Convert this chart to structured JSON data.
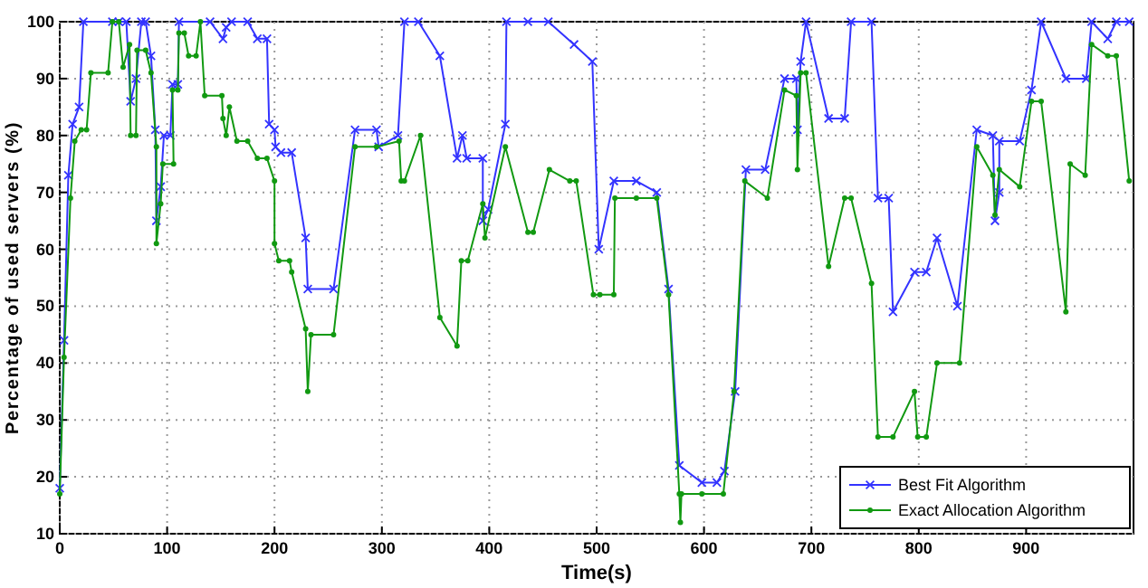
{
  "chart_data": {
    "type": "line",
    "xlabel": "Time(s)",
    "ylabel": "Percentage of used servers (%)",
    "xlim": [
      0,
      1000
    ],
    "xticks": [
      0,
      100,
      200,
      300,
      400,
      500,
      600,
      700,
      800,
      900
    ],
    "ylim": [
      10,
      100
    ],
    "yticks": [
      10,
      20,
      30,
      40,
      50,
      60,
      70,
      80,
      90,
      100
    ],
    "grid": true,
    "legend": "bottom right",
    "series": [
      {
        "name": "Best Fit Algorithm",
        "color": "#3333ff",
        "marker": "cross",
        "x": [
          0,
          4,
          8,
          12,
          18,
          22,
          49,
          55,
          62,
          66,
          71,
          76,
          80,
          85,
          89,
          90,
          94,
          97,
          103,
          105,
          110,
          111,
          140,
          152,
          155,
          160,
          175,
          184,
          193,
          195,
          200,
          201,
          206,
          216,
          229,
          231,
          255,
          275,
          295,
          297,
          315,
          321,
          334,
          354,
          370,
          375,
          379,
          394,
          394,
          399,
          415,
          416,
          436,
          455,
          479,
          496,
          502,
          516,
          537,
          556,
          567,
          577,
          598,
          612,
          619,
          629,
          639,
          657,
          675,
          686,
          687,
          690,
          695,
          716,
          731,
          737,
          756,
          762,
          772,
          776,
          796,
          807,
          817,
          836,
          854,
          869,
          871,
          875,
          875,
          894,
          905,
          914,
          937,
          956,
          961,
          976,
          984,
          996
        ],
        "values": [
          18,
          44,
          73,
          82,
          85,
          100,
          100,
          100,
          100,
          86,
          90,
          100,
          100,
          94,
          81,
          65,
          71,
          80,
          80,
          89,
          89,
          100,
          100,
          97,
          99,
          100,
          100,
          97,
          97,
          82,
          81,
          78,
          77,
          77,
          62,
          53,
          53,
          81,
          81,
          78,
          80,
          100,
          100,
          94,
          76,
          80,
          76,
          76,
          65,
          67,
          82,
          100,
          100,
          100,
          96,
          93,
          60,
          72,
          72,
          70,
          53,
          22,
          19,
          19,
          21,
          35,
          74,
          74,
          90,
          90,
          81,
          93,
          100,
          83,
          83,
          100,
          100,
          69,
          69,
          49,
          56,
          56,
          62,
          50,
          81,
          80,
          65,
          70,
          79,
          79,
          88,
          100,
          90,
          90,
          100,
          97,
          100,
          100
        ]
      },
      {
        "name": "Exact Allocation Algorithm",
        "color": "#119911",
        "marker": "circle",
        "x": [
          0,
          4,
          10,
          14,
          20,
          25,
          29,
          45,
          49,
          55,
          59,
          65,
          66,
          71,
          72,
          80,
          85,
          90,
          90,
          94,
          96,
          106,
          105,
          110,
          111,
          116,
          120,
          127,
          131,
          135,
          151,
          152,
          155,
          158,
          165,
          175,
          184,
          193,
          200,
          200,
          204,
          214,
          216,
          229,
          231,
          234,
          255,
          275,
          295,
          316,
          318,
          321,
          336,
          354,
          370,
          374,
          380,
          394,
          396,
          415,
          436,
          441,
          456,
          475,
          481,
          497,
          503,
          516,
          517,
          537,
          556,
          567,
          577,
          578,
          579,
          598,
          618,
          628,
          638,
          659,
          675,
          686,
          687,
          690,
          695,
          716,
          731,
          737,
          756,
          762,
          776,
          796,
          799,
          807,
          817,
          838,
          854,
          869,
          871,
          875,
          894,
          905,
          914,
          937,
          941,
          955,
          961,
          976,
          984,
          996
        ],
        "values": [
          17,
          41,
          69,
          79,
          81,
          81,
          91,
          91,
          100,
          100,
          92,
          96,
          80,
          80,
          95,
          95,
          91,
          78,
          61,
          68,
          75,
          75,
          88,
          88,
          98,
          98,
          94,
          94,
          100,
          87,
          87,
          83,
          80,
          85,
          79,
          79,
          76,
          76,
          72,
          61,
          58,
          58,
          56,
          46,
          35,
          45,
          45,
          78,
          78,
          79,
          72,
          72,
          80,
          48,
          43,
          58,
          58,
          68,
          62,
          78,
          63,
          63,
          74,
          72,
          72,
          52,
          52,
          52,
          69,
          69,
          69,
          52,
          17,
          12,
          17,
          17,
          17,
          35,
          72,
          69,
          88,
          87,
          74,
          91,
          91,
          57,
          69,
          69,
          54,
          27,
          27,
          35,
          27,
          27,
          40,
          40,
          78,
          73,
          66,
          74,
          71,
          86,
          86,
          49,
          75,
          73,
          96,
          94,
          94,
          72
        ]
      }
    ]
  }
}
